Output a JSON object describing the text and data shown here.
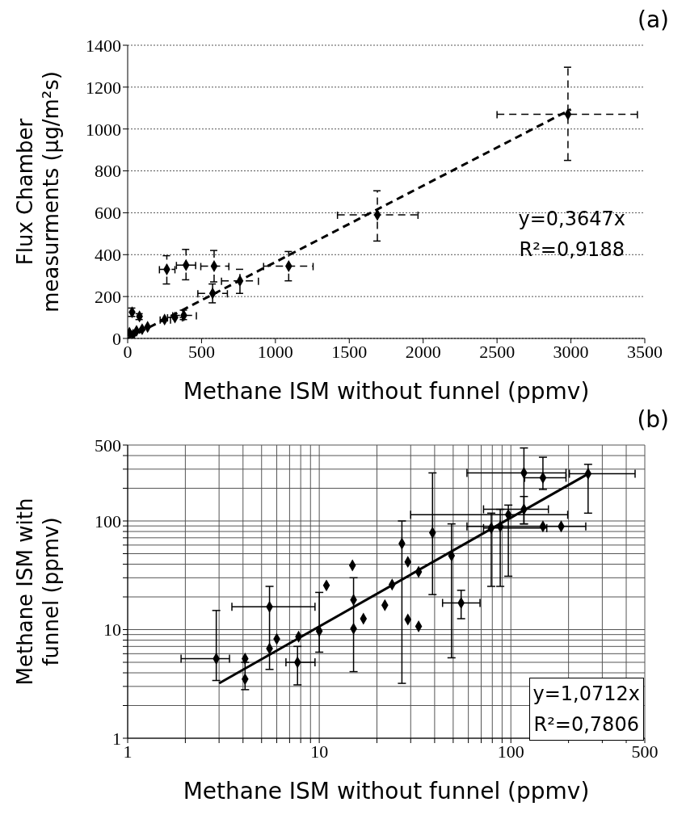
{
  "chart_data": [
    {
      "type": "scatter",
      "title": "(a)",
      "xlabel": "Methane ISM without funnel (ppmv)",
      "ylabel": "Flux Chamber measurments (µg/m²s)",
      "xlim": [
        0,
        3500
      ],
      "xticks": [
        0,
        500,
        1000,
        1500,
        2000,
        2500,
        3000,
        3500
      ],
      "ylim": [
        0,
        1400
      ],
      "yticks": [
        0,
        200,
        400,
        600,
        800,
        1000,
        1200,
        1400
      ],
      "grid": "y",
      "line_style": "dashed",
      "series": [
        {
          "marker": "diamond",
          "color": "#000000",
          "x": [
            2980,
            1690,
            1090,
            760,
            575,
            585,
            395,
            265,
            380,
            320,
            250,
            30,
            80,
            135,
            12,
            37,
            60,
            98
          ],
          "values": [
            1070,
            590,
            345,
            275,
            215,
            345,
            350,
            330,
            110,
            100,
            90,
            125,
            105,
            55,
            27,
            18,
            36,
            44
          ],
          "errors": [
            [
              850,
              1295
            ],
            [
              465,
              705
            ],
            [
              275,
              415
            ],
            [
              215,
              330
            ],
            [
              170,
              260
            ],
            [
              270,
              420
            ],
            [
              280,
              425
            ],
            [
              260,
              395
            ],
            [
              90,
              135
            ],
            null,
            null,
            [
              105,
              145
            ],
            [
              90,
              118
            ],
            null,
            null,
            null,
            null,
            null
          ],
          "xerrors": [
            [
              2500,
              3450
            ],
            [
              1420,
              1965
            ],
            [
              920,
              1255
            ],
            [
              635,
              885
            ],
            [
              475,
              675
            ],
            [
              495,
              685
            ],
            [
              330,
              460
            ],
            [
              215,
              320
            ],
            [
              305,
              465
            ],
            [
              270,
              370
            ],
            [
              220,
              290
            ],
            null,
            null,
            null,
            null,
            null,
            null,
            null
          ]
        },
        {
          "type": "line",
          "color": "#000000",
          "x": [
            0,
            3000
          ],
          "values": [
            0,
            1094
          ]
        }
      ],
      "annotations": [
        "y=0,3647x",
        "R²=0,9188"
      ]
    },
    {
      "type": "scatter",
      "title": "(b)",
      "xlabel": "Methane ISM without funnel (ppmv)",
      "ylabel": "Methane ISM with funnel (ppmv)",
      "log": "xy",
      "xlim": [
        1,
        500
      ],
      "xticks": [
        1,
        {
          "value": 2,
          "label": null
        },
        {
          "value": 3,
          "label": null
        },
        {
          "value": 4,
          "label": null
        },
        {
          "value": 5,
          "label": null
        },
        {
          "value": 6,
          "label": null
        },
        {
          "value": 7,
          "label": null
        },
        {
          "value": 8,
          "label": null
        },
        {
          "value": 9,
          "label": null
        },
        10,
        {
          "value": 20,
          "label": null
        },
        {
          "value": 30,
          "label": null
        },
        {
          "value": 40,
          "label": null
        },
        {
          "value": 50,
          "label": null
        },
        {
          "value": 60,
          "label": null
        },
        {
          "value": 70,
          "label": null
        },
        {
          "value": 80,
          "label": null
        },
        {
          "value": 90,
          "label": null
        },
        100,
        {
          "value": 200,
          "label": null
        },
        {
          "value": 300,
          "label": null
        },
        {
          "value": 400,
          "label": null
        },
        500
      ],
      "ylim": [
        1,
        500
      ],
      "yticks": [
        1,
        {
          "value": 2,
          "label": null
        },
        {
          "value": 3,
          "label": null
        },
        {
          "value": 4,
          "label": null
        },
        {
          "value": 5,
          "label": null
        },
        {
          "value": 6,
          "label": null
        },
        {
          "value": 7,
          "label": null
        },
        {
          "value": 8,
          "label": null
        },
        {
          "value": 9,
          "label": null
        },
        10,
        {
          "value": 20,
          "label": null
        },
        {
          "value": 30,
          "label": null
        },
        {
          "value": 40,
          "label": null
        },
        {
          "value": 50,
          "label": null
        },
        {
          "value": 60,
          "label": null
        },
        {
          "value": 70,
          "label": null
        },
        {
          "value": 80,
          "label": null
        },
        {
          "value": 90,
          "label": null
        },
        100,
        {
          "value": 200,
          "label": null
        },
        {
          "value": 300,
          "label": null
        },
        {
          "value": 400,
          "label": null
        },
        500
      ],
      "grid": true,
      "line_style": "solid",
      "series": [
        {
          "marker": "diamond",
          "color": "#000000",
          "x": [
            253,
            147,
            117,
            117,
            97,
            88,
            79,
            55,
            49,
            39,
            27,
            29,
            33,
            33,
            29,
            24,
            22,
            17,
            14.9,
            183,
            147,
            15.1,
            15.1,
            10.9,
            10,
            7.8,
            7.7,
            6,
            5.5,
            5.5,
            4.1,
            4.1,
            2.9
          ],
          "values": [
            272,
            250,
            277,
            128,
            114,
            89,
            86,
            17.6,
            48,
            78,
            62,
            42,
            34,
            10.7,
            12.4,
            26,
            16.8,
            12.6,
            39,
            89,
            89,
            18.8,
            10.2,
            25.5,
            9.7,
            8.6,
            5,
            8.2,
            16.2,
            6.7,
            5.4,
            3.5,
            5.4
          ],
          "errors": [
            [
              118,
              332
            ],
            [
              195,
              386
            ],
            [
              94,
              470
            ],
            [
              94,
              168
            ],
            [
              31,
              140
            ],
            [
              25,
              128
            ],
            [
              25,
              118
            ],
            [
              12.6,
              23
            ],
            [
              5.5,
              94
            ],
            [
              21,
              277
            ],
            [
              3.2,
              100
            ],
            null,
            null,
            null,
            null,
            null,
            null,
            null,
            null,
            null,
            null,
            [
              4.1,
              30
            ],
            null,
            null,
            [
              6.2,
              22
            ],
            null,
            [
              3.1,
              7
            ],
            null,
            [
              4.3,
              25
            ],
            null,
            null,
            [
              2.8,
              5
            ],
            [
              3.4,
              15
            ]
          ],
          "xerrors": [
            [
              202,
              445
            ],
            [
              118,
              194
            ],
            [
              59,
              194
            ],
            [
              72,
              157
            ],
            [
              30,
              198
            ],
            null,
            [
              72,
              154
            ],
            [
              44,
              69
            ],
            null,
            null,
            null,
            null,
            null,
            null,
            null,
            null,
            null,
            null,
            null,
            [
              59,
              246
            ],
            null,
            null,
            null,
            null,
            null,
            null,
            [
              6.7,
              9.5
            ],
            null,
            [
              3.5,
              9.5
            ],
            null,
            null,
            null,
            [
              1.9,
              3.4
            ]
          ]
        },
        {
          "type": "line",
          "color": "#000000",
          "x": [
            3,
            250
          ],
          "values": [
            3.2,
            268
          ]
        }
      ],
      "annotations": [
        "y=1,0712x",
        "R²=0,7806"
      ]
    }
  ]
}
